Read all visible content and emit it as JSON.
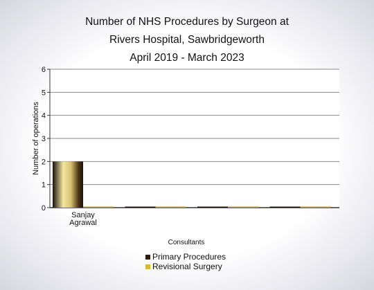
{
  "title_lines": [
    "Number of NHS Procedures by Surgeon at",
    "Rivers Hospital, Sawbridgeworth",
    "April 2019 - March 2023"
  ],
  "chart_data": {
    "type": "bar",
    "title": "Number of NHS Procedures by Surgeon at Rivers Hospital, Sawbridgeworth April 2019 - March 2023",
    "xlabel": "Consultants",
    "ylabel": "Number of operations",
    "ylim": [
      0,
      6
    ],
    "yticks": [
      0,
      1,
      2,
      3,
      4,
      5,
      6
    ],
    "categories": [
      "Sanjay Agrawal",
      "",
      "",
      ""
    ],
    "category_lines": [
      [
        "Sanjay",
        "Agrawal"
      ],
      [],
      [],
      []
    ],
    "series": [
      {
        "name": "Primary Procedures",
        "values": [
          2,
          0,
          0,
          0
        ],
        "color": "#2a1d12"
      },
      {
        "name": "Revisional Surgery",
        "values": [
          0,
          0,
          0,
          0
        ],
        "color": "#d9b83a"
      }
    ],
    "grid": true,
    "legend_position": "bottom"
  }
}
